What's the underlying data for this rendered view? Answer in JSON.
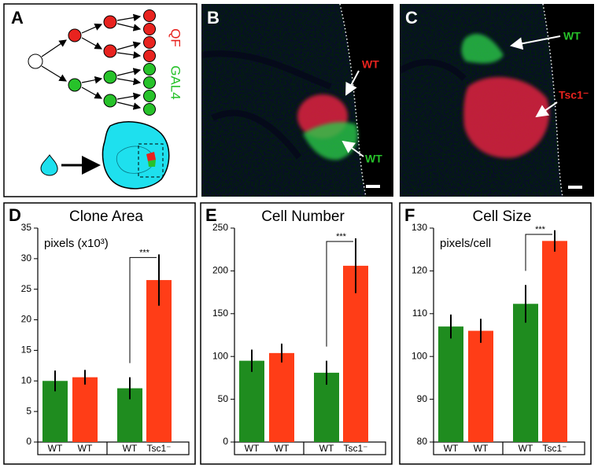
{
  "panels": {
    "A": {
      "label": "A",
      "qf": "QF",
      "gal4": "GAL4"
    },
    "B": {
      "label": "B",
      "wt_top": "WT",
      "wt_bottom": "WT"
    },
    "C": {
      "label": "C",
      "wt": "WT",
      "mutant": "Tsc1⁻"
    }
  },
  "chart_data": [
    {
      "type": "bar",
      "panel_label": "D",
      "title": "Clone Area",
      "annotation": "pixels (x10³)",
      "significance": "***",
      "categories": [
        "WT",
        "WT",
        "WT",
        "Tsc1⁻"
      ],
      "values": [
        10,
        10.6,
        8.8,
        26.5
      ],
      "errors": [
        1.7,
        1.2,
        1.8,
        4.2
      ],
      "colors": [
        "#1f8c1f",
        "#ff3d17",
        "#1f8c1f",
        "#ff3d17"
      ],
      "ylim": [
        0,
        35
      ],
      "yticks": [
        0,
        5,
        10,
        15,
        20,
        25,
        30,
        35
      ]
    },
    {
      "type": "bar",
      "panel_label": "E",
      "title": "Cell Number",
      "significance": "***",
      "categories": [
        "WT",
        "WT",
        "WT",
        "Tsc1⁻"
      ],
      "values": [
        95,
        104,
        81,
        206
      ],
      "errors": [
        13,
        11,
        14,
        32
      ],
      "colors": [
        "#1f8c1f",
        "#ff3d17",
        "#1f8c1f",
        "#ff3d17"
      ],
      "ylim": [
        0,
        250
      ],
      "yticks": [
        0,
        50,
        100,
        150,
        200,
        250
      ]
    },
    {
      "type": "bar",
      "panel_label": "F",
      "title": "Cell Size",
      "annotation": "pixels/cell",
      "significance": "***",
      "categories": [
        "WT",
        "WT",
        "WT",
        "Tsc1⁻"
      ],
      "values": [
        107,
        106,
        112.3,
        127
      ],
      "errors": [
        2.8,
        2.8,
        4.4,
        2.5
      ],
      "colors": [
        "#1f8c1f",
        "#ff3d17",
        "#1f8c1f",
        "#ff3d17"
      ],
      "ylim": [
        80,
        130
      ],
      "yticks": [
        80,
        90,
        100,
        110,
        120,
        130
      ]
    }
  ]
}
